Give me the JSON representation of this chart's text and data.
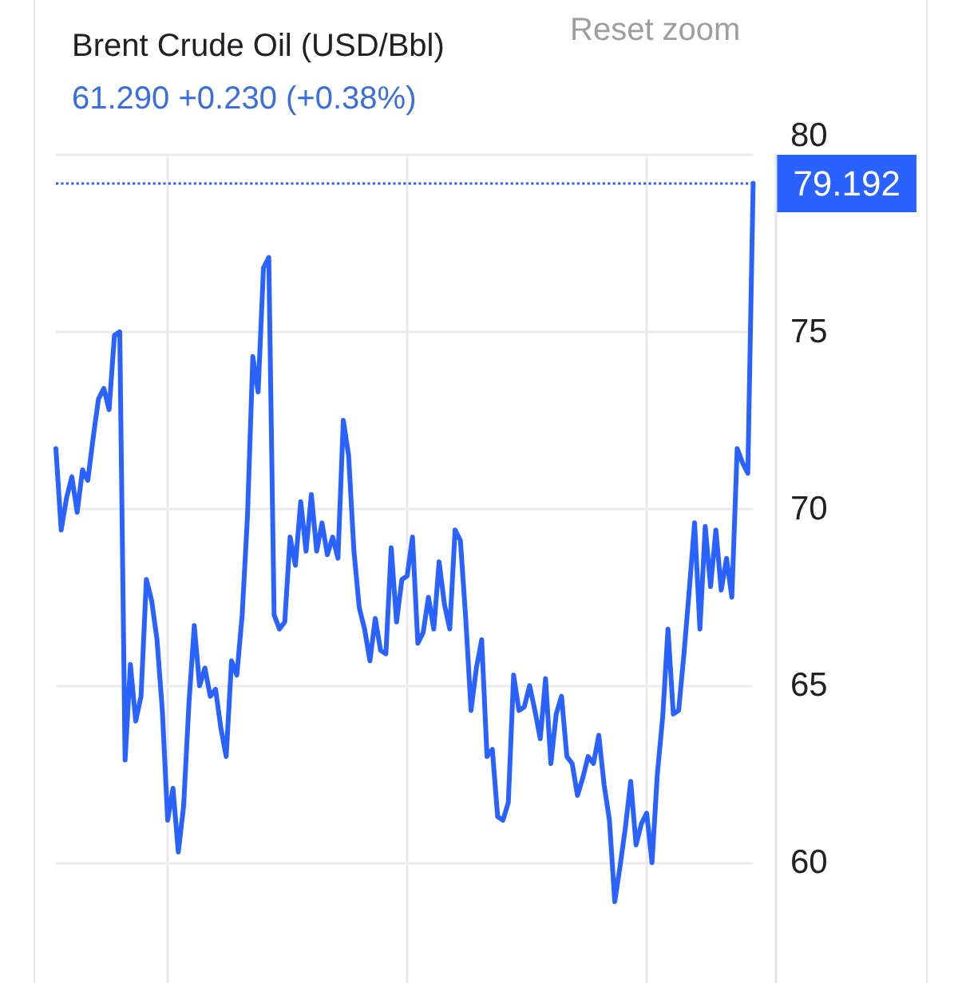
{
  "chart_data": {
    "type": "line",
    "title": "Brent Crude Oil (USD/Bbl)",
    "subtitle": "61.290 +0.230 (+0.38%)",
    "annotations": [
      "Reset zoom"
    ],
    "categories": [
      null,
      null,
      null,
      null,
      null,
      null,
      null,
      null,
      null,
      null,
      null,
      null,
      null,
      null,
      null,
      null,
      null,
      null,
      null,
      null,
      null,
      null,
      null,
      null,
      null,
      null,
      null,
      null,
      null,
      null,
      null,
      null,
      null,
      null,
      null,
      null,
      null,
      null,
      null,
      null,
      null,
      null,
      null,
      null,
      null,
      null,
      null,
      null,
      null,
      null,
      null,
      null,
      null,
      null,
      null,
      null,
      null,
      null,
      null,
      null,
      null,
      null,
      null,
      null,
      null,
      null,
      null,
      null,
      null,
      null,
      null,
      null,
      null,
      null,
      null,
      null,
      null,
      null,
      null,
      null,
      null,
      null,
      null,
      null,
      null,
      null,
      null,
      null,
      null,
      null,
      null,
      null,
      null,
      null,
      null,
      null,
      null,
      null,
      null,
      null,
      null,
      null,
      null,
      null,
      null,
      null,
      null,
      null,
      null,
      null,
      null,
      null,
      null,
      null,
      null,
      null,
      null,
      null,
      null,
      null,
      null,
      null,
      null,
      null,
      null,
      null,
      null,
      null,
      null,
      null,
      null,
      null
    ],
    "color": "#2962ff",
    "values": [
      71.7,
      69.4,
      70.3,
      70.9,
      69.9,
      71.1,
      70.8,
      72.0,
      73.1,
      73.4,
      72.8,
      74.9,
      75.0,
      62.9,
      65.6,
      64.0,
      64.7,
      68.0,
      67.4,
      66.3,
      64.3,
      61.2,
      62.1,
      60.3,
      61.6,
      64.5,
      66.7,
      65.0,
      65.5,
      64.7,
      64.9,
      63.8,
      63.0,
      65.7,
      65.3,
      67.0,
      69.8,
      74.3,
      73.3,
      76.8,
      77.1,
      67.0,
      66.6,
      66.8,
      69.2,
      68.4,
      70.2,
      68.8,
      70.4,
      68.8,
      69.6,
      68.7,
      69.2,
      68.6,
      72.5,
      71.5,
      68.8,
      67.2,
      66.6,
      65.7,
      66.9,
      66.0,
      65.9,
      68.9,
      66.8,
      68.0,
      68.1,
      69.2,
      66.2,
      66.5,
      67.5,
      66.6,
      68.5,
      67.3,
      66.6,
      69.4,
      69.1,
      66.9,
      64.3,
      65.5,
      66.3,
      63.0,
      63.2,
      61.3,
      61.2,
      61.7,
      65.3,
      64.3,
      64.4,
      65.0,
      64.3,
      63.5,
      65.2,
      62.8,
      64.2,
      64.7,
      63.0,
      62.8,
      61.9,
      62.4,
      63.0,
      62.8,
      63.6,
      62.2,
      61.2,
      58.9,
      59.9,
      61.0,
      62.3,
      60.5,
      61.1,
      61.4,
      60.0,
      62.5,
      64.1,
      66.6,
      64.2,
      64.3,
      65.9,
      67.7,
      69.6,
      66.6,
      69.5,
      67.8,
      69.4,
      67.7,
      68.6,
      67.5,
      71.7,
      71.3,
      71.0,
      79.192
    ],
    "ylim": [
      56.6,
      80
    ],
    "yticks": [
      60,
      65,
      70,
      75,
      80
    ],
    "ref_lines": [
      {
        "axis": "y",
        "value": 79.192,
        "label": "79.192",
        "color": "#2962ff",
        "line_style": "dotted"
      }
    ],
    "grid": true,
    "tick_labels": "y",
    "line_style": "solid"
  }
}
